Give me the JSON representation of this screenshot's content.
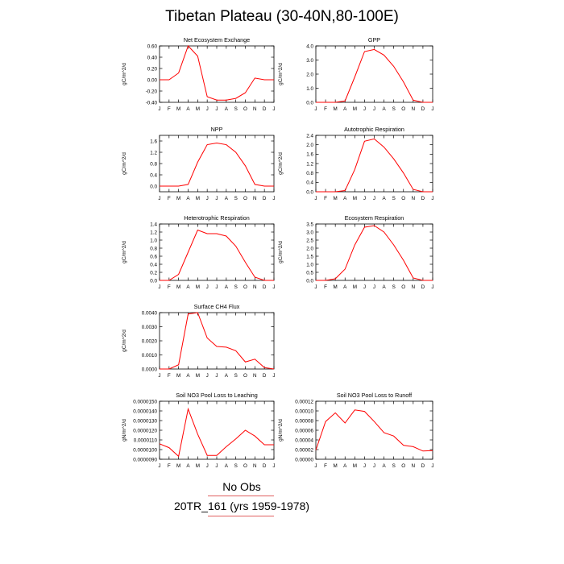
{
  "page": {
    "title": "Tibetan Plateau (30-40N,80-100E)"
  },
  "legend": {
    "line1": "No Obs",
    "line2": "20TR_161 (yrs 1959-1978)",
    "line_color": "#e06060"
  },
  "colors": {
    "series": "#ff0000",
    "axis": "#000000"
  },
  "chart_data": [
    {
      "type": "line",
      "title": "Net Ecosystem Exchange",
      "ylabel": "gC/m^2/d",
      "categories": [
        "J",
        "F",
        "M",
        "A",
        "M",
        "J",
        "J",
        "A",
        "S",
        "O",
        "N",
        "D",
        "J"
      ],
      "ylim": [
        -0.4,
        0.6
      ],
      "yticks": [
        -0.4,
        -0.2,
        0.0,
        0.2,
        0.4,
        0.6
      ],
      "ytick_labels": [
        "-0.40",
        "-0.20",
        "0.00",
        "0.20",
        "0.40",
        "0.60"
      ],
      "values": [
        0.0,
        0.0,
        0.12,
        0.6,
        0.42,
        -0.3,
        -0.36,
        -0.36,
        -0.33,
        -0.23,
        0.03,
        0.0,
        0.0
      ]
    },
    {
      "type": "line",
      "title": "GPP",
      "ylabel": "gC/m^2/d",
      "categories": [
        "J",
        "F",
        "M",
        "A",
        "M",
        "J",
        "J",
        "A",
        "S",
        "O",
        "N",
        "D",
        "J"
      ],
      "ylim": [
        0,
        4.0
      ],
      "yticks": [
        0,
        1,
        2,
        3,
        4
      ],
      "ytick_labels": [
        "0.0",
        "1.0",
        "2.0",
        "3.0",
        "4.0"
      ],
      "values": [
        0.0,
        0.0,
        0.0,
        0.1,
        1.8,
        3.6,
        3.75,
        3.35,
        2.55,
        1.45,
        0.15,
        0.0,
        0.0
      ]
    },
    {
      "type": "line",
      "title": "NPP",
      "ylabel": "gC/m^2/d",
      "categories": [
        "J",
        "F",
        "M",
        "A",
        "M",
        "J",
        "J",
        "A",
        "S",
        "O",
        "N",
        "D",
        "J"
      ],
      "ylim": [
        -0.2,
        1.8
      ],
      "yticks": [
        0.0,
        0.4,
        0.8,
        1.2,
        1.6
      ],
      "ytick_labels": [
        "0.0",
        "0.4",
        "0.8",
        "1.2",
        "1.6"
      ],
      "values": [
        0.0,
        0.0,
        0.0,
        0.06,
        0.85,
        1.47,
        1.53,
        1.47,
        1.2,
        0.72,
        0.06,
        0.0,
        0.0
      ]
    },
    {
      "type": "line",
      "title": "Autotrophic Respiration",
      "ylabel": "gC/m^2/d",
      "categories": [
        "J",
        "F",
        "M",
        "A",
        "M",
        "J",
        "J",
        "A",
        "S",
        "O",
        "N",
        "D",
        "J"
      ],
      "ylim": [
        0,
        2.4
      ],
      "yticks": [
        0,
        0.4,
        0.8,
        1.2,
        1.6,
        2.0,
        2.4
      ],
      "ytick_labels": [
        "0.0",
        "0.4",
        "0.8",
        "1.2",
        "1.6",
        "2.0",
        "2.4"
      ],
      "values": [
        0.0,
        0.0,
        0.0,
        0.05,
        0.95,
        2.15,
        2.25,
        1.9,
        1.4,
        0.8,
        0.1,
        0.0,
        0.0
      ]
    },
    {
      "type": "line",
      "title": "Heterotrophic Respiration",
      "ylabel": "gC/m^2/d",
      "categories": [
        "J",
        "F",
        "M",
        "A",
        "M",
        "J",
        "J",
        "A",
        "S",
        "O",
        "N",
        "D",
        "J"
      ],
      "ylim": [
        0,
        1.4
      ],
      "yticks": [
        0,
        0.2,
        0.4,
        0.6,
        0.8,
        1.0,
        1.2,
        1.4
      ],
      "ytick_labels": [
        "0.0",
        "0.2",
        "0.4",
        "0.6",
        "0.8",
        "1.0",
        "1.2",
        "1.4"
      ],
      "values": [
        0.0,
        0.0,
        0.15,
        0.7,
        1.25,
        1.16,
        1.16,
        1.1,
        0.85,
        0.45,
        0.08,
        0.0,
        0.0
      ]
    },
    {
      "type": "line",
      "title": "Ecosystem Respiration",
      "ylabel": "gC/m^2/d",
      "categories": [
        "J",
        "F",
        "M",
        "A",
        "M",
        "J",
        "J",
        "A",
        "S",
        "O",
        "N",
        "D",
        "J"
      ],
      "ylim": [
        0,
        3.5
      ],
      "yticks": [
        0,
        0.5,
        1.0,
        1.5,
        2.0,
        2.5,
        3.0,
        3.5
      ],
      "ytick_labels": [
        "0.0",
        "0.5",
        "1.0",
        "1.5",
        "2.0",
        "2.5",
        "3.0",
        "3.5"
      ],
      "values": [
        0.0,
        0.0,
        0.1,
        0.7,
        2.2,
        3.3,
        3.4,
        3.0,
        2.2,
        1.25,
        0.15,
        0.0,
        0.0
      ]
    },
    {
      "type": "line",
      "title": "Surface CH4 Flux",
      "ylabel": "gC/m^2/d",
      "categories": [
        "J",
        "F",
        "M",
        "A",
        "M",
        "J",
        "J",
        "A",
        "S",
        "O",
        "N",
        "D",
        "J"
      ],
      "ylim": [
        0,
        0.004
      ],
      "yticks": [
        0,
        0.001,
        0.002,
        0.003,
        0.004
      ],
      "ytick_labels": [
        "0.0000",
        "0.0010",
        "0.0020",
        "0.0030",
        "0.0040"
      ],
      "values": [
        0.0,
        0.0,
        0.0003,
        0.0039,
        0.004,
        0.0022,
        0.0016,
        0.00155,
        0.0013,
        0.0005,
        0.0007,
        0.0001,
        0.0
      ]
    },
    {
      "type": "line",
      "title": "Soil NO3 Pool Loss to Leaching",
      "ylabel": "gN/m^2/d",
      "categories": [
        "J",
        "F",
        "M",
        "A",
        "M",
        "J",
        "J",
        "A",
        "S",
        "O",
        "N",
        "D",
        "J"
      ],
      "ylim": [
        9e-06,
        1.5e-05
      ],
      "yticks": [
        9e-06,
        1e-05,
        1.1e-05,
        1.2e-05,
        1.3e-05,
        1.4e-05,
        1.5e-05
      ],
      "ytick_labels": [
        "0.0000090",
        "0.0000100",
        "0.0000110",
        "0.0000120",
        "0.0000130",
        "0.0000140",
        "0.0000150"
      ],
      "values": [
        1.06e-05,
        1.02e-05,
        9.3e-06,
        1.42e-05,
        1.16e-05,
        9.4e-06,
        9.4e-06,
        1.03e-05,
        1.11e-05,
        1.2e-05,
        1.14e-05,
        1.05e-05,
        1.05e-05
      ]
    },
    {
      "type": "line",
      "title": "Soil NO3 Pool Loss to Runoff",
      "ylabel": "gN/m^2/d",
      "categories": [
        "J",
        "F",
        "M",
        "A",
        "M",
        "J",
        "J",
        "A",
        "S",
        "O",
        "N",
        "D",
        "J"
      ],
      "ylim": [
        0,
        0.00012
      ],
      "yticks": [
        0,
        2e-05,
        4e-05,
        6e-05,
        8e-05,
        0.0001,
        0.00012
      ],
      "ytick_labels": [
        "0.00000",
        "0.00002",
        "0.00004",
        "0.00006",
        "0.00008",
        "0.00010",
        "0.00012"
      ],
      "values": [
        1.9e-05,
        7.8e-05,
        9.6e-05,
        7.5e-05,
        0.000102,
        9.9e-05,
        7.8e-05,
        5.5e-05,
        4.8e-05,
        2.9e-05,
        2.6e-05,
        1.7e-05,
        1.8e-05
      ]
    }
  ]
}
